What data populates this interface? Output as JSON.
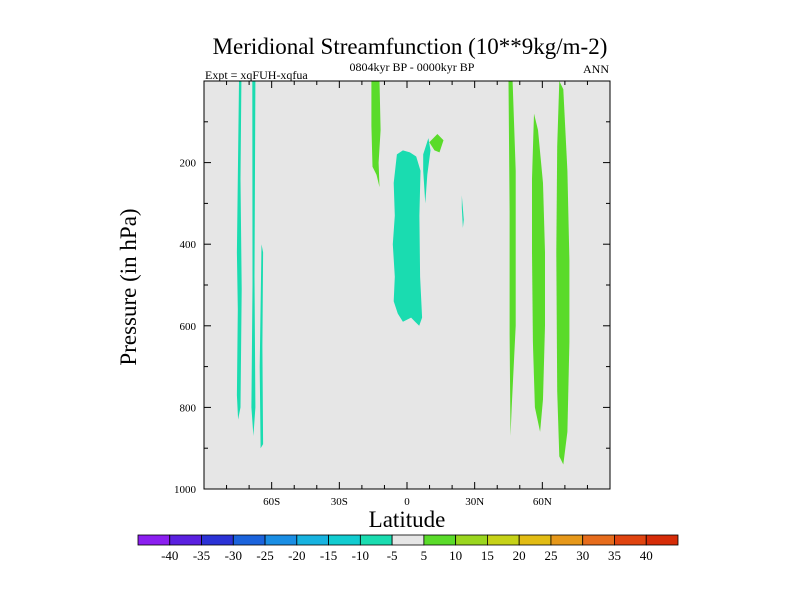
{
  "chart_data": {
    "type": "heatmap",
    "title": "Meridional Streamfunction (10**9kg/m-2)",
    "left_subtitle": "Expt = xqFUH-xqfua",
    "center_subtitle": "0804kyr BP - 0000kyr BP",
    "right_subtitle": "ANN",
    "xlabel": "Latitude",
    "ylabel": "Pressure (in hPa)",
    "xlim": [
      -90,
      90
    ],
    "ylim": [
      1000,
      0
    ],
    "x_ticks": [
      {
        "value": -60,
        "label": "60S"
      },
      {
        "value": -30,
        "label": "30S"
      },
      {
        "value": 0,
        "label": "0"
      },
      {
        "value": 30,
        "label": "30N"
      },
      {
        "value": 60,
        "label": "60N"
      }
    ],
    "y_ticks": [
      {
        "value": 200,
        "label": "200"
      },
      {
        "value": 400,
        "label": "400"
      },
      {
        "value": 600,
        "label": "600"
      },
      {
        "value": 800,
        "label": "800"
      },
      {
        "value": 1000,
        "label": "1000"
      }
    ],
    "background_color": "#e6e6e6",
    "colorbar": {
      "levels": [
        "-40",
        "-35",
        "-30",
        "-25",
        "-20",
        "-15",
        "-10",
        "-5",
        "5",
        "10",
        "15",
        "20",
        "25",
        "30",
        "35",
        "40"
      ],
      "colors": [
        "#8b1ff0",
        "#5a20e0",
        "#2b32d6",
        "#1b63dc",
        "#1a8ee4",
        "#17b3e0",
        "#12ccd0",
        "#1adcb0",
        "#e6e6e6",
        "#5adb2a",
        "#9ad61e",
        "#c6d218",
        "#e2bc14",
        "#e6981a",
        "#e66c1c",
        "#e04410",
        "#d62c08"
      ]
    },
    "regions": [
      {
        "name": "neg-a",
        "value": -7,
        "color": "#1adcb0",
        "points": [
          [
            -74.5,
            0
          ],
          [
            -73.4,
            0
          ],
          [
            -73.8,
            240
          ],
          [
            -73.3,
            510
          ],
          [
            -73.8,
            800
          ],
          [
            -74.9,
            830
          ],
          [
            -75.4,
            770
          ],
          [
            -75,
            560
          ],
          [
            -75.4,
            420
          ],
          [
            -74.5,
            0
          ]
        ]
      },
      {
        "name": "neg-b",
        "value": -7,
        "color": "#1adcb0",
        "points": [
          [
            -68.6,
            0
          ],
          [
            -67.2,
            0
          ],
          [
            -67.6,
            480
          ],
          [
            -67.2,
            800
          ],
          [
            -68.1,
            870
          ],
          [
            -69,
            800
          ],
          [
            -68.5,
            500
          ],
          [
            -68.6,
            0
          ]
        ]
      },
      {
        "name": "neg-c",
        "value": -7,
        "color": "#1adcb0",
        "points": [
          [
            -64.5,
            400
          ],
          [
            -63.8,
            420
          ],
          [
            -64.1,
            650
          ],
          [
            -63.8,
            890
          ],
          [
            -64.9,
            900
          ],
          [
            -65.3,
            700
          ],
          [
            -64.5,
            400
          ]
        ]
      },
      {
        "name": "neg-d",
        "value": -7,
        "color": "#1adcb0",
        "points": [
          [
            -4.5,
            180
          ],
          [
            -1.8,
            170
          ],
          [
            1.3,
            175
          ],
          [
            4.1,
            185
          ],
          [
            6,
            220
          ],
          [
            5.5,
            330
          ],
          [
            5.8,
            480
          ],
          [
            6.7,
            580
          ],
          [
            5.4,
            600
          ],
          [
            3.6,
            590
          ],
          [
            1.8,
            580
          ],
          [
            -1.8,
            590
          ],
          [
            -4.1,
            570
          ],
          [
            -5.9,
            540
          ],
          [
            -5.4,
            480
          ],
          [
            -6.3,
            400
          ],
          [
            -5.4,
            330
          ],
          [
            -5.9,
            250
          ],
          [
            -4.5,
            180
          ]
        ]
      },
      {
        "name": "neg-e",
        "value": -7,
        "color": "#1adcb0",
        "points": [
          [
            7.2,
            180
          ],
          [
            9.5,
            140
          ],
          [
            10.4,
            170
          ],
          [
            9,
            230
          ],
          [
            8.1,
            300
          ],
          [
            7.2,
            220
          ],
          [
            7.2,
            180
          ]
        ]
      },
      {
        "name": "neg-f",
        "value": -7,
        "color": "#1adcb0",
        "points": [
          [
            24.3,
            280
          ],
          [
            25.2,
            340
          ],
          [
            24.8,
            360
          ],
          [
            24.3,
            310
          ],
          [
            24.3,
            280
          ]
        ]
      },
      {
        "name": "pos-a",
        "value": 7,
        "color": "#5adb2a",
        "points": [
          [
            -15.8,
            0
          ],
          [
            -12.2,
            0
          ],
          [
            -11.7,
            120
          ],
          [
            -12.6,
            200
          ],
          [
            -12.2,
            260
          ],
          [
            -13.5,
            230
          ],
          [
            -15.3,
            210
          ],
          [
            -15.8,
            110
          ],
          [
            -15.8,
            0
          ]
        ]
      },
      {
        "name": "pos-b",
        "value": 7,
        "color": "#5adb2a",
        "points": [
          [
            9.9,
            150
          ],
          [
            13.5,
            130
          ],
          [
            16.2,
            145
          ],
          [
            14.4,
            175
          ],
          [
            12.2,
            170
          ],
          [
            9.9,
            150
          ]
        ]
      },
      {
        "name": "pos-c",
        "value": 7,
        "color": "#5adb2a",
        "points": [
          [
            45,
            0
          ],
          [
            46.8,
            0
          ],
          [
            48.2,
            220
          ],
          [
            48.2,
            600
          ],
          [
            46.4,
            800
          ],
          [
            45.9,
            870
          ],
          [
            45.5,
            620
          ],
          [
            45.5,
            320
          ],
          [
            45,
            0
          ]
        ]
      },
      {
        "name": "pos-d",
        "value": 7,
        "color": "#5adb2a",
        "points": [
          [
            56.3,
            80
          ],
          [
            58.1,
            120
          ],
          [
            60.3,
            250
          ],
          [
            61.2,
            420
          ],
          [
            61.2,
            600
          ],
          [
            60.3,
            780
          ],
          [
            59,
            860
          ],
          [
            56.7,
            800
          ],
          [
            55.8,
            640
          ],
          [
            55.4,
            420
          ],
          [
            55.4,
            240
          ],
          [
            56.3,
            80
          ]
        ]
      },
      {
        "name": "pos-e",
        "value": 7,
        "color": "#5adb2a",
        "points": [
          [
            67.5,
            0
          ],
          [
            69.3,
            20
          ],
          [
            71.1,
            220
          ],
          [
            72,
            440
          ],
          [
            72,
            640
          ],
          [
            71.1,
            860
          ],
          [
            69.3,
            940
          ],
          [
            67.5,
            920
          ],
          [
            66.6,
            760
          ],
          [
            66.2,
            420
          ],
          [
            66.6,
            160
          ],
          [
            67.5,
            0
          ]
        ]
      }
    ]
  }
}
